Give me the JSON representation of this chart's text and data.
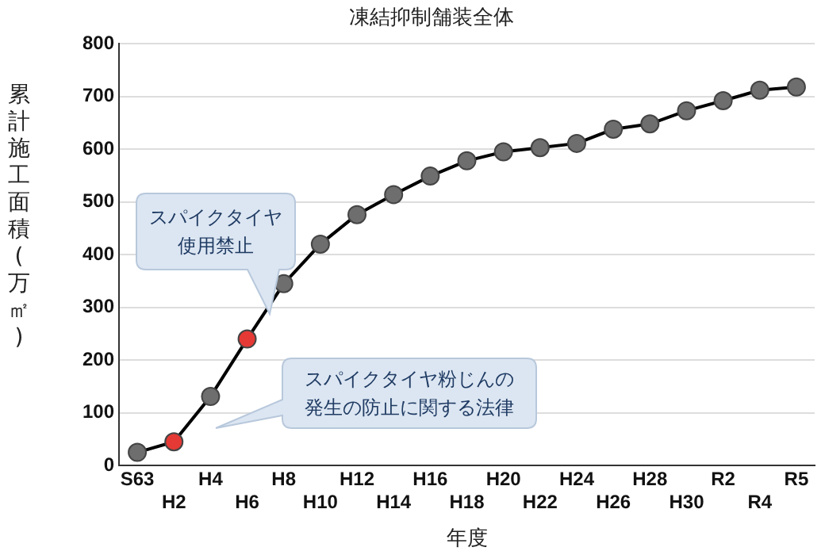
{
  "chart_data": {
    "type": "line",
    "title": "凍結抑制舗装全体",
    "xlabel": "年度",
    "ylabel": "累計施工面積(万㎡)",
    "categories": [
      "S63",
      "H2",
      "H4",
      "H6",
      "H8",
      "H10",
      "H12",
      "H14",
      "H16",
      "H18",
      "H20",
      "H22",
      "H24",
      "H26",
      "H28",
      "H30",
      "R2",
      "R4",
      "R5"
    ],
    "series": [
      {
        "color": "#000000",
        "colors": [
          "#6e6e6e",
          "#e53935",
          "#6e6e6e",
          "#e53935",
          "#6e6e6e",
          "#6e6e6e",
          "#6e6e6e",
          "#6e6e6e",
          "#6e6e6e",
          "#6e6e6e",
          "#6e6e6e",
          "#6e6e6e",
          "#6e6e6e",
          "#6e6e6e",
          "#6e6e6e",
          "#6e6e6e",
          "#6e6e6e",
          "#6e6e6e",
          "#6e6e6e"
        ],
        "values": [
          25,
          45,
          131,
          240,
          345,
          420,
          476,
          514,
          549,
          578,
          595,
          603,
          611,
          638,
          648,
          673,
          692,
          712,
          718
        ]
      }
    ],
    "ylim": [
      0,
      800
    ],
    "yticks": [
      0,
      100,
      200,
      300,
      400,
      500,
      600,
      700,
      800
    ],
    "grid": "y",
    "legend": false,
    "marker": "circle",
    "line_style": "solid",
    "annotations": [
      "スパイクタイヤ使用禁止",
      "スパイクタイヤ粉じんの発生の防止に関する法律"
    ]
  }
}
